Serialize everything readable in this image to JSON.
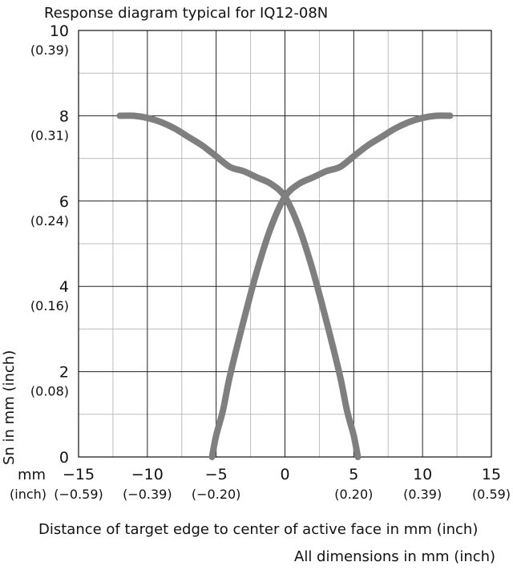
{
  "chart_data": {
    "type": "line",
    "title": "Response diagram typical for IQ12-08N",
    "xlabel": "Distance of target edge to center of active face in mm (inch)",
    "ylabel": "Sn in mm (inch)",
    "footnote": "All dimensions in mm (inch)",
    "x_unit_label": "mm",
    "x_unit_label_secondary": "(inch)",
    "xlim": [
      -15,
      15
    ],
    "ylim": [
      0,
      10
    ],
    "grid": true,
    "x_ticks": [
      {
        "value": -15,
        "label": "−15",
        "sublabel": "(−0.59)"
      },
      {
        "value": -10,
        "label": "−10",
        "sublabel": "(−0.39)"
      },
      {
        "value": -5,
        "label": "−5",
        "sublabel": "(−0.20)"
      },
      {
        "value": 0,
        "label": "0",
        "sublabel": ""
      },
      {
        "value": 5,
        "label": "5",
        "sublabel": "(0.20)"
      },
      {
        "value": 10,
        "label": "10",
        "sublabel": "(0.39)"
      },
      {
        "value": 15,
        "label": "15",
        "sublabel": "(0.59)"
      }
    ],
    "y_ticks": [
      {
        "value": 0,
        "label": "0",
        "sublabel": ""
      },
      {
        "value": 2,
        "label": "2",
        "sublabel": "(0.08)"
      },
      {
        "value": 4,
        "label": "4",
        "sublabel": "(0.16)"
      },
      {
        "value": 6,
        "label": "6",
        "sublabel": "(0.24)"
      },
      {
        "value": 8,
        "label": "8",
        "sublabel": "(0.31)"
      },
      {
        "value": 10,
        "label": "10",
        "sublabel": "(0.39)"
      }
    ],
    "series": [
      {
        "color": "#7f7f7f",
        "x": [
          -12.0,
          -11.0,
          -10.0,
          -9.0,
          -8.0,
          -7.0,
          -6.0,
          -5.0,
          -4.0,
          -3.0,
          -2.0,
          -1.0,
          0.0,
          1.0,
          2.0,
          3.0,
          4.0,
          4.5,
          5.0,
          5.3
        ],
        "y": [
          8.0,
          8.0,
          7.95,
          7.85,
          7.7,
          7.5,
          7.3,
          7.05,
          6.8,
          6.7,
          6.55,
          6.4,
          6.1,
          5.4,
          4.4,
          3.2,
          1.9,
          1.1,
          0.5,
          0.0
        ]
      },
      {
        "color": "#7f7f7f",
        "x": [
          -5.3,
          -5.0,
          -4.5,
          -4.0,
          -3.0,
          -2.0,
          -1.0,
          0.0,
          1.0,
          2.0,
          3.0,
          4.0,
          5.0,
          6.0,
          7.0,
          8.0,
          9.0,
          10.0,
          11.0,
          12.0
        ],
        "y": [
          0.0,
          0.5,
          1.1,
          1.9,
          3.2,
          4.4,
          5.4,
          6.1,
          6.4,
          6.55,
          6.7,
          6.8,
          7.05,
          7.3,
          7.5,
          7.7,
          7.85,
          7.95,
          8.0,
          8.0
        ]
      }
    ]
  }
}
